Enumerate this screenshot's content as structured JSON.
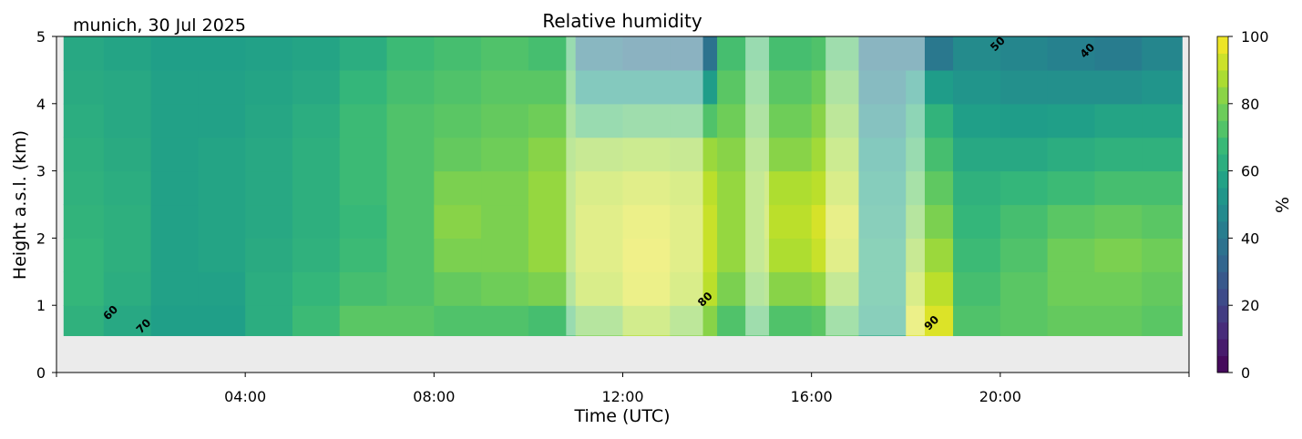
{
  "chart_data": {
    "type": "heatmap",
    "title": "Relative humidity",
    "subtitle": "munich, 30 Jul 2025",
    "xlabel": "Time (UTC)",
    "ylabel": "Height a.s.l. (km)",
    "xlim_hours": [
      0,
      24
    ],
    "ylim": [
      0,
      5
    ],
    "x_ticks": [
      {
        "value": 4,
        "label": "04:00"
      },
      {
        "value": 8,
        "label": "08:00"
      },
      {
        "value": 12,
        "label": "12:00"
      },
      {
        "value": 16,
        "label": "16:00"
      },
      {
        "value": 20,
        "label": "20:00"
      }
    ],
    "y_ticks": [
      {
        "value": 0,
        "label": "0"
      },
      {
        "value": 1,
        "label": "1"
      },
      {
        "value": 2,
        "label": "2"
      },
      {
        "value": 3,
        "label": "3"
      },
      {
        "value": 4,
        "label": "4"
      },
      {
        "value": 5,
        "label": "5"
      }
    ],
    "data_time_range_hours": [
      0.15,
      23.85
    ],
    "height_bands_km": [
      0.55,
      1.0,
      1.5,
      2.0,
      2.5,
      3.0,
      3.5,
      4.0,
      4.5,
      5.0
    ],
    "hour_columns": [
      0,
      1,
      2,
      3,
      4,
      5,
      6,
      7,
      8,
      9,
      10,
      11,
      12,
      13,
      14,
      15,
      16,
      17,
      18,
      19,
      20,
      21,
      22,
      23
    ],
    "values_bottom_to_top": [
      [
        64,
        66,
        66,
        65,
        64,
        63,
        62,
        61,
        60
      ],
      [
        60,
        62,
        63,
        63,
        62,
        61,
        60,
        60,
        58
      ],
      [
        56,
        57,
        57,
        57,
        57,
        57,
        57,
        57,
        56
      ],
      [
        56,
        57,
        58,
        58,
        58,
        58,
        57,
        57,
        56
      ],
      [
        62,
        62,
        61,
        60,
        60,
        60,
        59,
        58,
        57
      ],
      [
        68,
        66,
        64,
        63,
        63,
        63,
        62,
        60,
        58
      ],
      [
        74,
        70,
        68,
        67,
        68,
        68,
        68,
        66,
        62
      ],
      [
        74,
        72,
        72,
        72,
        72,
        72,
        72,
        70,
        68
      ],
      [
        72,
        76,
        80,
        82,
        80,
        76,
        74,
        72,
        70
      ],
      [
        72,
        78,
        80,
        80,
        80,
        78,
        76,
        74,
        72
      ],
      [
        70,
        80,
        84,
        84,
        84,
        82,
        78,
        74,
        70
      ],
      [
        80,
        90,
        92,
        92,
        90,
        85,
        70,
        55,
        42
      ],
      [
        88,
        95,
        96,
        95,
        92,
        86,
        72,
        55,
        38
      ],
      [
        82,
        90,
        92,
        92,
        90,
        85,
        72,
        55,
        38
      ],
      [
        72,
        80,
        84,
        84,
        84,
        82,
        78,
        74,
        70
      ],
      [
        72,
        82,
        88,
        90,
        88,
        82,
        78,
        74,
        70
      ],
      [
        74,
        84,
        92,
        94,
        90,
        86,
        82,
        78,
        72
      ],
      [
        60,
        62,
        62,
        60,
        58,
        55,
        50,
        45,
        40
      ],
      [
        95,
        90,
        85,
        80,
        75,
        70,
        65,
        55,
        40
      ],
      [
        72,
        70,
        68,
        66,
        64,
        60,
        56,
        52,
        48
      ],
      [
        74,
        74,
        72,
        70,
        66,
        60,
        55,
        50,
        46
      ],
      [
        76,
        78,
        78,
        74,
        68,
        62,
        56,
        50,
        44
      ],
      [
        76,
        78,
        80,
        76,
        70,
        64,
        58,
        50,
        42
      ],
      [
        74,
        76,
        78,
        74,
        70,
        64,
        58,
        52,
        46
      ]
    ],
    "masked_periods_hours": [
      [
        10.8,
        13.7
      ],
      [
        14.6,
        15.1
      ],
      [
        16.3,
        18.4
      ]
    ],
    "contour_labels": [
      {
        "label": "60",
        "time": 1.2,
        "height": 0.85
      },
      {
        "label": "70",
        "time": 1.9,
        "height": 0.65
      },
      {
        "label": "80",
        "time": 13.8,
        "height": 1.05
      },
      {
        "label": "90",
        "time": 18.6,
        "height": 0.7
      },
      {
        "label": "50",
        "time": 20.0,
        "height": 4.85
      },
      {
        "label": "40",
        "time": 21.9,
        "height": 4.75
      }
    ],
    "colorbar": {
      "label": "%",
      "range": [
        0,
        100
      ],
      "colormap": "viridis",
      "ticks": [
        {
          "value": 0,
          "label": "0"
        },
        {
          "value": 20,
          "label": "20"
        },
        {
          "value": 40,
          "label": "40"
        },
        {
          "value": 60,
          "label": "60"
        },
        {
          "value": 80,
          "label": "80"
        },
        {
          "value": 100,
          "label": "100"
        }
      ]
    },
    "no_data_color": "#ebebeb"
  }
}
